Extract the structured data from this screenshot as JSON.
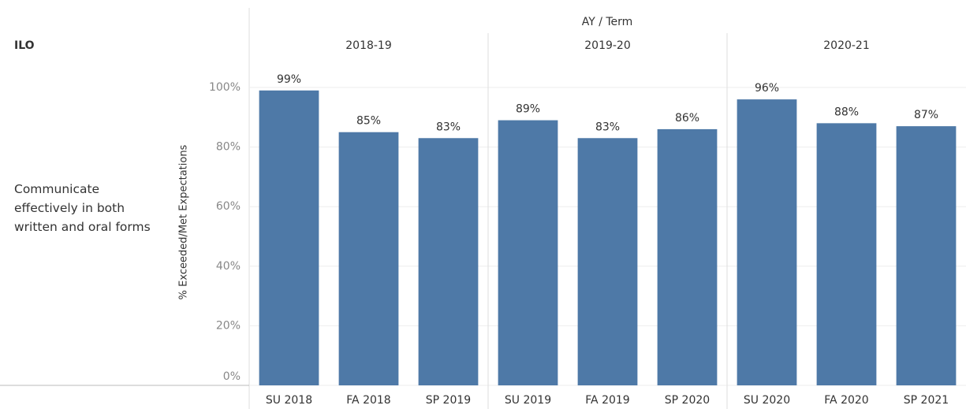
{
  "chart_data": {
    "type": "bar",
    "column_header": "AY / Term",
    "row_header": "ILO",
    "row_label": "Communicate effectively in both written and oral forms",
    "y_label": "% Exceeded/Met Expectations",
    "color": "#4e79a7",
    "grid": true,
    "ylim": [
      0,
      100
    ],
    "yticks": [
      {
        "value": 0,
        "label": "0%"
      },
      {
        "value": 20,
        "label": "20%"
      },
      {
        "value": 40,
        "label": "40%"
      },
      {
        "value": 60,
        "label": "60%"
      },
      {
        "value": 80,
        "label": "80%"
      },
      {
        "value": 100,
        "label": "100%"
      }
    ],
    "groups": [
      {
        "name": "2018-19",
        "categories": [
          "SU 2018",
          "FA 2018",
          "SP 2019"
        ],
        "values": [
          99,
          85,
          83
        ],
        "value_labels": [
          "99%",
          "85%",
          "83%"
        ]
      },
      {
        "name": "2019-20",
        "categories": [
          "SU 2019",
          "FA 2019",
          "SP 2020"
        ],
        "values": [
          89,
          83,
          86
        ],
        "value_labels": [
          "89%",
          "83%",
          "86%"
        ]
      },
      {
        "name": "2020-21",
        "categories": [
          "SU 2020",
          "FA 2020",
          "SP 2021"
        ],
        "values": [
          96,
          88,
          87
        ],
        "value_labels": [
          "96%",
          "88%",
          "87%"
        ]
      }
    ]
  }
}
